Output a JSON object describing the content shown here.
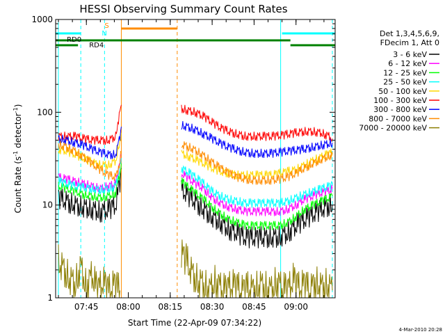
{
  "chart_data": {
    "type": "line",
    "title": "HESSI Observing Summary Count Rates",
    "xlabel": "Start Time (22-Apr-09 07:34:22)",
    "ylabel_main": "Count Rate (s",
    "ylabel_sup1": "-1",
    "ylabel_mid": " detector",
    "ylabel_sup2": "-1",
    "ylabel_end": ")",
    "y_scale": "log",
    "xlim": [
      "07:34",
      "09:14"
    ],
    "ylim": [
      1,
      1000
    ],
    "x_ticks": [
      "07:45",
      "08:00",
      "08:15",
      "08:30",
      "08:45",
      "09:00"
    ],
    "y_ticks": [
      "1",
      "10",
      "100",
      "1000"
    ],
    "footer_date": "4-Mar-2010 20:28",
    "legend": {
      "header_line1": "Det 1,3,4,5,6,9,",
      "header_line2": "FDecim 1, Att 0",
      "placement": "right",
      "entries": [
        {
          "label": "3 - 6 keV",
          "color": "#000000"
        },
        {
          "label": "6 - 12 keV",
          "color": "#ff00ff"
        },
        {
          "label": "12 - 25 keV",
          "color": "#00ff00"
        },
        {
          "label": "25 - 50 keV",
          "color": "#00ffff"
        },
        {
          "label": "50 - 100 keV",
          "color": "#ffd700"
        },
        {
          "label": "100 - 300 keV",
          "color": "#ff0000"
        },
        {
          "label": "300 - 800 keV",
          "color": "#0000ff"
        },
        {
          "label": "800 - 7000 keV",
          "color": "#ff8c00"
        },
        {
          "label": "7000 - 20000 keV",
          "color": "#8b7d00"
        }
      ]
    },
    "flags": {
      "saa_label": "S",
      "night_label": "N",
      "rd0_label": "RD0",
      "rd4_label": "RD4",
      "saa_start": "07:57.5",
      "saa_end": "08:17.5",
      "night_start": "07:34",
      "night_end": "07:43",
      "night_start2": "08:55",
      "night_end2": "09:14",
      "rd0_start": "07:34",
      "rd0_end": "08:58",
      "rd4_start": "07:34",
      "rd4_end": "07:42",
      "rd4_start2": "08:58",
      "rd4_end2": "09:14"
    },
    "vertical_lines": [
      {
        "time": "07:35",
        "color": "#00ffff",
        "style": "solid"
      },
      {
        "time": "07:43",
        "color": "#00ffff",
        "style": "dashed"
      },
      {
        "time": "07:51.5",
        "color": "#00ffff",
        "style": "dashed"
      },
      {
        "time": "07:57.5",
        "color": "#ff8c00",
        "style": "solid"
      },
      {
        "time": "08:17.5",
        "color": "#ff8c00",
        "style": "dashed"
      },
      {
        "time": "08:54.5",
        "color": "#00ffff",
        "style": "solid"
      },
      {
        "time": "09:13",
        "color": "#00ffff",
        "style": "dashed"
      }
    ],
    "series": [
      {
        "name": "3 - 6 keV",
        "color": "#000000",
        "x": [
          "07:35",
          "07:38",
          "07:41",
          "07:44",
          "07:47",
          "07:50",
          "07:53",
          "07:55.5",
          "07:56",
          "07:57",
          "07:57.5",
          "08:19",
          "08:21",
          "08:24",
          "08:27",
          "08:30",
          "08:33",
          "08:36",
          "08:39",
          "08:42",
          "08:45",
          "08:48",
          "08:51",
          "08:54",
          "08:57",
          "09:00",
          "09:03",
          "09:06",
          "09:09",
          "09:12",
          "09:13"
        ],
        "y": [
          12,
          11,
          10,
          9.5,
          9,
          8.5,
          9,
          10,
          12,
          18,
          25,
          15,
          13,
          11,
          9,
          7.5,
          6.5,
          5.5,
          5,
          4.5,
          4.5,
          4.5,
          4.5,
          4.5,
          5,
          6,
          7,
          8,
          9,
          10,
          10
        ]
      },
      {
        "name": "6 - 12 keV",
        "color": "#ff00ff",
        "x": [
          "07:35",
          "07:38",
          "07:41",
          "07:44",
          "07:47",
          "07:50",
          "07:53",
          "07:55.5",
          "07:56",
          "07:57",
          "07:57.5",
          "08:19",
          "08:21",
          "08:24",
          "08:27",
          "08:30",
          "08:33",
          "08:36",
          "08:39",
          "08:42",
          "08:45",
          "08:48",
          "08:51",
          "08:54",
          "08:57",
          "09:00",
          "09:03",
          "09:06",
          "09:09",
          "09:12",
          "09:13"
        ],
        "y": [
          20,
          19,
          18,
          17,
          16,
          15,
          16,
          17,
          20,
          28,
          35,
          22,
          20,
          17,
          15,
          12,
          10.5,
          9.5,
          9,
          8.5,
          8.5,
          8.5,
          8.5,
          8.5,
          9,
          10,
          11.5,
          12.5,
          13.5,
          14.5,
          15
        ]
      },
      {
        "name": "12 - 25 keV",
        "color": "#00ff00",
        "x": [
          "07:35",
          "07:38",
          "07:41",
          "07:44",
          "07:47",
          "07:50",
          "07:53",
          "07:55.5",
          "07:56",
          "07:57",
          "07:57.5",
          "08:19",
          "08:21",
          "08:24",
          "08:27",
          "08:30",
          "08:33",
          "08:36",
          "08:39",
          "08:42",
          "08:45",
          "08:48",
          "08:51",
          "08:54",
          "08:57",
          "09:00",
          "09:03",
          "09:06",
          "09:09",
          "09:12",
          "09:13"
        ],
        "y": [
          16,
          15,
          14,
          13,
          12.5,
          12,
          12.5,
          13.5,
          16,
          22,
          28,
          18,
          16,
          13.5,
          11.5,
          9.5,
          8,
          7,
          6.5,
          6,
          6,
          6,
          6,
          6,
          6.5,
          7.5,
          9,
          10,
          11,
          12,
          12.5
        ]
      },
      {
        "name": "25 - 50 keV",
        "color": "#00ffff",
        "x": [
          "07:35",
          "07:38",
          "07:41",
          "07:44",
          "07:47",
          "07:50",
          "07:53",
          "07:55.5",
          "07:56",
          "07:57",
          "07:57.5",
          "08:19",
          "08:21",
          "08:24",
          "08:27",
          "08:30",
          "08:33",
          "08:36",
          "08:39",
          "08:42",
          "08:45",
          "08:48",
          "08:51",
          "08:54",
          "08:57",
          "09:00",
          "09:03",
          "09:06",
          "09:09",
          "09:12",
          "09:13"
        ],
        "y": [
          18,
          17,
          16,
          15.5,
          15,
          14.5,
          15,
          16,
          19,
          26,
          32,
          25,
          23,
          20,
          17,
          14,
          12.5,
          11.5,
          11,
          10.5,
          10.5,
          10.5,
          10.5,
          10.5,
          11,
          12,
          13,
          14,
          15,
          16,
          16.5
        ]
      },
      {
        "name": "50 - 100 keV",
        "color": "#ffd700",
        "x": [
          "07:35",
          "07:38",
          "07:41",
          "07:44",
          "07:47",
          "07:50",
          "07:53",
          "07:55.5",
          "07:56",
          "07:57",
          "07:57.5",
          "08:19",
          "08:21",
          "08:24",
          "08:27",
          "08:30",
          "08:33",
          "08:36",
          "08:39",
          "08:42",
          "08:45",
          "08:48",
          "08:51",
          "08:54",
          "08:57",
          "09:00",
          "09:03",
          "09:06",
          "09:09",
          "09:12",
          "09:13"
        ],
        "y": [
          40,
          38,
          35,
          32,
          29,
          27,
          27,
          30,
          36,
          50,
          60,
          36,
          34,
          31,
          28,
          25,
          23,
          22,
          21,
          21,
          21,
          21,
          21,
          22,
          23,
          24,
          27,
          30,
          33,
          36,
          37
        ]
      },
      {
        "name": "100 - 300 keV",
        "color": "#ff0000",
        "x": [
          "07:35",
          "07:38",
          "07:41",
          "07:44",
          "07:47",
          "07:50",
          "07:53",
          "07:55.5",
          "07:56",
          "07:57",
          "07:57.5",
          "08:19",
          "08:21",
          "08:24",
          "08:27",
          "08:30",
          "08:33",
          "08:36",
          "08:39",
          "08:42",
          "08:45",
          "08:48",
          "08:51",
          "08:54",
          "08:57",
          "09:00",
          "09:03",
          "09:06",
          "09:09",
          "09:12",
          "09:13"
        ],
        "y": [
          55,
          55,
          55,
          52,
          50,
          50,
          50,
          55,
          70,
          100,
          120,
          110,
          105,
          100,
          90,
          78,
          68,
          62,
          58,
          55,
          55,
          55,
          55,
          56,
          58,
          60,
          62,
          62,
          60,
          55,
          52
        ]
      },
      {
        "name": "300 - 800 keV",
        "color": "#0000ff",
        "x": [
          "07:35",
          "07:38",
          "07:41",
          "07:44",
          "07:47",
          "07:50",
          "07:53",
          "07:55.5",
          "07:56",
          "07:57",
          "07:57.5",
          "08:19",
          "08:21",
          "08:24",
          "08:27",
          "08:30",
          "08:33",
          "08:36",
          "08:39",
          "08:42",
          "08:45",
          "08:48",
          "08:51",
          "08:54",
          "08:57",
          "09:00",
          "09:03",
          "09:06",
          "09:09",
          "09:12",
          "09:13"
        ],
        "y": [
          52,
          50,
          47,
          44,
          40,
          37,
          35,
          35,
          40,
          55,
          70,
          72,
          70,
          65,
          58,
          52,
          46,
          42,
          39,
          37,
          36,
          36,
          36,
          37,
          38,
          39,
          40,
          42,
          44,
          46,
          47
        ]
      },
      {
        "name": "800 - 7000 keV",
        "color": "#ff8c00",
        "x": [
          "07:35",
          "07:38",
          "07:41",
          "07:44",
          "07:47",
          "07:50",
          "07:53",
          "07:55.5",
          "07:56",
          "07:57",
          "07:57.5",
          "08:19",
          "08:21",
          "08:24",
          "08:27",
          "08:30",
          "08:33",
          "08:36",
          "08:39",
          "08:42",
          "08:45",
          "08:48",
          "08:51",
          "08:54",
          "08:57",
          "09:00",
          "09:03",
          "09:06",
          "09:09",
          "09:12",
          "09:13"
        ],
        "y": [
          45,
          42,
          38,
          33,
          28,
          24,
          21,
          20,
          22,
          30,
          38,
          45,
          43,
          39,
          34,
          29,
          25,
          22,
          20,
          19,
          18.5,
          18.5,
          18.5,
          19,
          20,
          22,
          25,
          28,
          31,
          34,
          35
        ]
      },
      {
        "name": "7000 - 20000 keV",
        "color": "#8b7d00",
        "x": [
          "07:35",
          "07:37",
          "07:39",
          "07:41",
          "07:43",
          "07:45",
          "07:47",
          "07:49",
          "07:51",
          "07:53",
          "07:55",
          "07:57",
          "08:19",
          "08:21",
          "08:23",
          "08:25",
          "08:27",
          "08:29",
          "08:31",
          "08:33",
          "08:35",
          "08:37",
          "08:39",
          "08:41",
          "08:43",
          "08:45",
          "08:47",
          "08:49",
          "08:51",
          "08:53",
          "08:55",
          "08:57",
          "08:59",
          "09:01",
          "09:03",
          "09:05",
          "09:07",
          "09:09",
          "09:11",
          "09:13"
        ],
        "y": [
          2.5,
          2,
          1.6,
          1.4,
          2.2,
          1.3,
          1.8,
          1.2,
          1.5,
          1.2,
          1.4,
          1.2,
          3,
          2.5,
          1.8,
          1.5,
          1.4,
          1.2,
          1.5,
          1.3,
          1.2,
          1.4,
          1.3,
          1.2,
          1.3,
          1.2,
          1.4,
          1.3,
          1.2,
          1.5,
          1.3,
          1.2,
          1.6,
          1.3,
          1.4,
          1.2,
          1.5,
          1.3,
          1.4,
          1.2
        ]
      }
    ]
  }
}
